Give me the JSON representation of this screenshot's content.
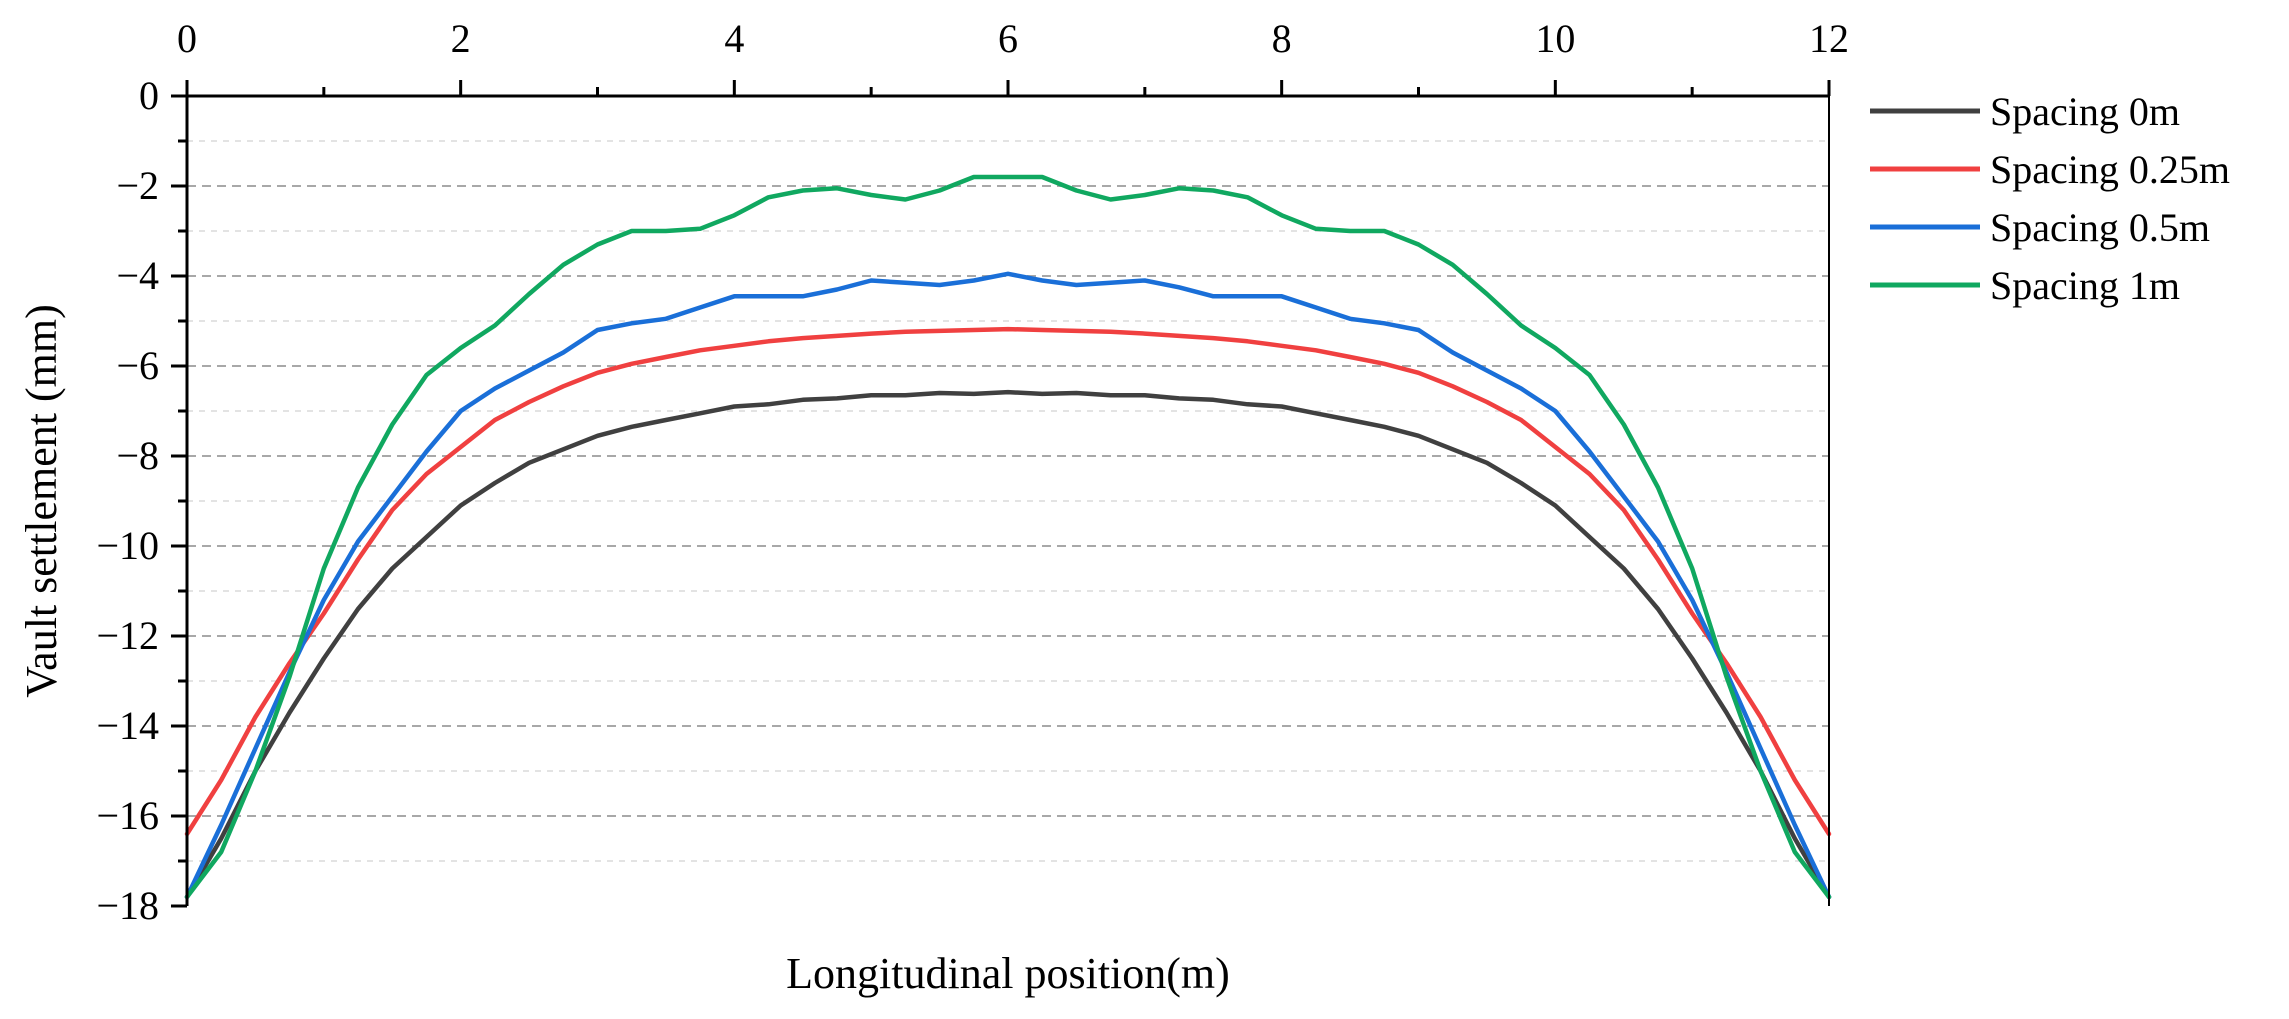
{
  "chart_data": {
    "type": "line",
    "title": "",
    "xlabel": "Longitudinal position(m)",
    "ylabel": "Vault settlement (mm)",
    "xlim": [
      0,
      12
    ],
    "ylim": [
      -18,
      0
    ],
    "x_ticks": [
      0,
      2,
      4,
      6,
      8,
      10,
      12
    ],
    "x_tick_labels": [
      "0",
      "2",
      "4",
      "6",
      "8",
      "10",
      "12"
    ],
    "y_ticks": [
      0,
      -2,
      -4,
      -6,
      -8,
      -10,
      -12,
      -14,
      -16,
      -18
    ],
    "y_tick_labels": [
      "0",
      "−2",
      "−4",
      "−6",
      "−8",
      "−10",
      "−12",
      "−14",
      "−16",
      "−18"
    ],
    "grid": "horizontal dashed",
    "legend_position": "right",
    "x": [
      0,
      0.25,
      0.5,
      0.75,
      1,
      1.25,
      1.5,
      1.75,
      2,
      2.25,
      2.5,
      2.75,
      3,
      3.25,
      3.5,
      3.75,
      4,
      4.25,
      4.5,
      4.75,
      5,
      5.25,
      5.5,
      5.75,
      6,
      6.25,
      6.5,
      6.75,
      7,
      7.25,
      7.5,
      7.75,
      8,
      8.25,
      8.5,
      8.75,
      9,
      9.25,
      9.5,
      9.75,
      10,
      10.25,
      10.5,
      10.75,
      11,
      11.25,
      11.5,
      11.75,
      12
    ],
    "series": [
      {
        "name": "Spacing 0m",
        "color": "#404040",
        "values": [
          -17.8,
          -16.5,
          -15.0,
          -13.7,
          -12.5,
          -11.4,
          -10.5,
          -9.8,
          -9.1,
          -8.6,
          -8.15,
          -7.85,
          -7.55,
          -7.35,
          -7.2,
          -7.05,
          -6.9,
          -6.85,
          -6.75,
          -6.72,
          -6.65,
          -6.65,
          -6.6,
          -6.62,
          -6.58,
          -6.62,
          -6.6,
          -6.65,
          -6.65,
          -6.72,
          -6.75,
          -6.85,
          -6.9,
          -7.05,
          -7.2,
          -7.35,
          -7.55,
          -7.85,
          -8.15,
          -8.6,
          -9.1,
          -9.8,
          -10.5,
          -11.4,
          -12.5,
          -13.7,
          -15.0,
          -16.5,
          -17.8
        ]
      },
      {
        "name": "Spacing 0.25m",
        "color": "#f04040",
        "values": [
          -16.4,
          -15.2,
          -13.8,
          -12.6,
          -11.5,
          -10.3,
          -9.2,
          -8.4,
          -7.8,
          -7.2,
          -6.8,
          -6.45,
          -6.15,
          -5.95,
          -5.8,
          -5.65,
          -5.55,
          -5.45,
          -5.38,
          -5.33,
          -5.28,
          -5.24,
          -5.22,
          -5.2,
          -5.18,
          -5.2,
          -5.22,
          -5.24,
          -5.28,
          -5.33,
          -5.38,
          -5.45,
          -5.55,
          -5.65,
          -5.8,
          -5.95,
          -6.15,
          -6.45,
          -6.8,
          -7.2,
          -7.8,
          -8.4,
          -9.2,
          -10.3,
          -11.5,
          -12.6,
          -13.8,
          -15.2,
          -16.4
        ]
      },
      {
        "name": "Spacing 0.5m",
        "color": "#1a6fd8",
        "values": [
          -17.8,
          -16.2,
          -14.5,
          -12.8,
          -11.2,
          -9.9,
          -8.9,
          -7.9,
          -7.0,
          -6.5,
          -6.1,
          -5.7,
          -5.2,
          -5.05,
          -4.95,
          -4.7,
          -4.45,
          -4.45,
          -4.45,
          -4.3,
          -4.1,
          -4.15,
          -4.2,
          -4.1,
          -3.95,
          -4.1,
          -4.2,
          -4.15,
          -4.1,
          -4.25,
          -4.45,
          -4.45,
          -4.45,
          -4.7,
          -4.95,
          -5.05,
          -5.2,
          -5.7,
          -6.1,
          -6.5,
          -7.0,
          -7.9,
          -8.9,
          -9.9,
          -11.2,
          -12.8,
          -14.5,
          -16.2,
          -17.8
        ]
      },
      {
        "name": "Spacing 1m",
        "color": "#10a860",
        "values": [
          -17.8,
          -16.8,
          -15.0,
          -12.9,
          -10.5,
          -8.7,
          -7.3,
          -6.2,
          -5.6,
          -5.1,
          -4.4,
          -3.75,
          -3.3,
          -3.0,
          -3.0,
          -2.95,
          -2.65,
          -2.25,
          -2.1,
          -2.05,
          -2.2,
          -2.3,
          -2.1,
          -1.8,
          -1.8,
          -1.8,
          -2.1,
          -2.3,
          -2.2,
          -2.05,
          -2.1,
          -2.25,
          -2.65,
          -2.95,
          -3.0,
          -3.0,
          -3.3,
          -3.75,
          -4.4,
          -5.1,
          -5.6,
          -6.2,
          -7.3,
          -8.7,
          -10.5,
          -12.9,
          -15.0,
          -16.8,
          -17.8
        ]
      }
    ]
  }
}
